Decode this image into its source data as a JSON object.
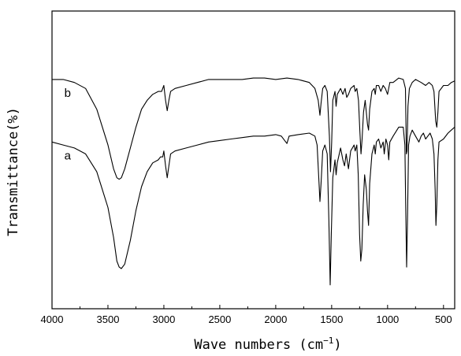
{
  "chart_data": {
    "type": "line",
    "title": "",
    "xlabel": "Wave numbers",
    "xlabel_unit": "(cm",
    "xlabel_sup": "−1",
    "xlabel_close": ")",
    "ylabel": "Transmittance(%)",
    "xlim": [
      4000,
      400
    ],
    "x_reversed": true,
    "ylim": [
      0,
      100
    ],
    "y_ticks_shown": false,
    "grid": false,
    "x_ticks": [
      "4000",
      "3500",
      "3000",
      "2500",
      "2000",
      "1500",
      "1000",
      "500"
    ],
    "series": [
      {
        "name": "b",
        "points": [
          [
            4000,
            77
          ],
          [
            3900,
            77
          ],
          [
            3800,
            76
          ],
          [
            3700,
            74
          ],
          [
            3600,
            67
          ],
          [
            3500,
            55
          ],
          [
            3450,
            47
          ],
          [
            3420,
            44
          ],
          [
            3400,
            43.5
          ],
          [
            3380,
            44
          ],
          [
            3350,
            47
          ],
          [
            3300,
            54
          ],
          [
            3250,
            61
          ],
          [
            3200,
            67
          ],
          [
            3150,
            70
          ],
          [
            3100,
            72
          ],
          [
            3050,
            73
          ],
          [
            3020,
            73
          ],
          [
            3000,
            75
          ],
          [
            2985,
            70
          ],
          [
            2970,
            66.5
          ],
          [
            2955,
            70
          ],
          [
            2940,
            73
          ],
          [
            2900,
            74
          ],
          [
            2800,
            75
          ],
          [
            2700,
            76
          ],
          [
            2600,
            77
          ],
          [
            2500,
            77
          ],
          [
            2400,
            77
          ],
          [
            2300,
            77
          ],
          [
            2200,
            77.5
          ],
          [
            2100,
            77.5
          ],
          [
            2000,
            77
          ],
          [
            1900,
            77.5
          ],
          [
            1800,
            77
          ],
          [
            1700,
            76
          ],
          [
            1650,
            74
          ],
          [
            1620,
            70
          ],
          [
            1605,
            65
          ],
          [
            1595,
            69
          ],
          [
            1580,
            74
          ],
          [
            1560,
            75
          ],
          [
            1540,
            73
          ],
          [
            1520,
            58
          ],
          [
            1510,
            46
          ],
          [
            1500,
            56
          ],
          [
            1490,
            70
          ],
          [
            1470,
            73
          ],
          [
            1460,
            68
          ],
          [
            1450,
            72
          ],
          [
            1420,
            74
          ],
          [
            1400,
            72
          ],
          [
            1380,
            74
          ],
          [
            1365,
            71
          ],
          [
            1350,
            72
          ],
          [
            1330,
            74
          ],
          [
            1300,
            75
          ],
          [
            1290,
            73
          ],
          [
            1275,
            74
          ],
          [
            1260,
            70
          ],
          [
            1248,
            60
          ],
          [
            1238,
            52
          ],
          [
            1228,
            57
          ],
          [
            1215,
            66
          ],
          [
            1200,
            70
          ],
          [
            1180,
            62
          ],
          [
            1170,
            60
          ],
          [
            1160,
            67
          ],
          [
            1140,
            73
          ],
          [
            1120,
            74
          ],
          [
            1110,
            72
          ],
          [
            1100,
            75
          ],
          [
            1080,
            75
          ],
          [
            1060,
            73
          ],
          [
            1040,
            75
          ],
          [
            1020,
            74
          ],
          [
            1000,
            72
          ],
          [
            980,
            76
          ],
          [
            950,
            76
          ],
          [
            900,
            77.5
          ],
          [
            860,
            77
          ],
          [
            840,
            74
          ],
          [
            832,
            52
          ],
          [
            826,
            53
          ],
          [
            818,
            68
          ],
          [
            805,
            74
          ],
          [
            780,
            76
          ],
          [
            750,
            77
          ],
          [
            700,
            76
          ],
          [
            660,
            75
          ],
          [
            630,
            76
          ],
          [
            600,
            75
          ],
          [
            585,
            73
          ],
          [
            570,
            63
          ],
          [
            560,
            61
          ],
          [
            550,
            66
          ],
          [
            540,
            73
          ],
          [
            500,
            75
          ],
          [
            460,
            75
          ],
          [
            430,
            76
          ],
          [
            400,
            76.5
          ]
        ]
      },
      {
        "name": "a",
        "points": [
          [
            4000,
            56
          ],
          [
            3900,
            55
          ],
          [
            3800,
            54
          ],
          [
            3700,
            52
          ],
          [
            3600,
            46
          ],
          [
            3500,
            34
          ],
          [
            3450,
            24
          ],
          [
            3420,
            16
          ],
          [
            3400,
            14
          ],
          [
            3380,
            13.5
          ],
          [
            3350,
            15
          ],
          [
            3300,
            23
          ],
          [
            3250,
            33
          ],
          [
            3200,
            41
          ],
          [
            3150,
            46
          ],
          [
            3100,
            49
          ],
          [
            3050,
            50
          ],
          [
            3030,
            51
          ],
          [
            3010,
            51
          ],
          [
            3000,
            53
          ],
          [
            2985,
            48
          ],
          [
            2970,
            44
          ],
          [
            2955,
            48
          ],
          [
            2940,
            52
          ],
          [
            2900,
            53
          ],
          [
            2800,
            54
          ],
          [
            2700,
            55
          ],
          [
            2600,
            56
          ],
          [
            2500,
            56.5
          ],
          [
            2400,
            57
          ],
          [
            2300,
            57.5
          ],
          [
            2200,
            58
          ],
          [
            2100,
            58
          ],
          [
            2000,
            58.5
          ],
          [
            1950,
            58
          ],
          [
            1900,
            55.5
          ],
          [
            1880,
            58
          ],
          [
            1800,
            58.5
          ],
          [
            1700,
            59
          ],
          [
            1650,
            58
          ],
          [
            1630,
            55
          ],
          [
            1615,
            44
          ],
          [
            1605,
            36
          ],
          [
            1595,
            42
          ],
          [
            1580,
            53
          ],
          [
            1560,
            55
          ],
          [
            1540,
            52
          ],
          [
            1525,
            30
          ],
          [
            1513,
            8
          ],
          [
            1503,
            25
          ],
          [
            1490,
            44
          ],
          [
            1470,
            50
          ],
          [
            1460,
            45
          ],
          [
            1450,
            49
          ],
          [
            1420,
            54
          ],
          [
            1400,
            50
          ],
          [
            1385,
            48
          ],
          [
            1370,
            52
          ],
          [
            1350,
            47
          ],
          [
            1330,
            53
          ],
          [
            1300,
            55
          ],
          [
            1290,
            53
          ],
          [
            1275,
            55
          ],
          [
            1262,
            45
          ],
          [
            1250,
            25
          ],
          [
            1240,
            16
          ],
          [
            1230,
            20
          ],
          [
            1218,
            35
          ],
          [
            1205,
            45
          ],
          [
            1190,
            40
          ],
          [
            1180,
            33
          ],
          [
            1170,
            28
          ],
          [
            1160,
            42
          ],
          [
            1140,
            52
          ],
          [
            1120,
            55
          ],
          [
            1110,
            52
          ],
          [
            1100,
            56
          ],
          [
            1080,
            57
          ],
          [
            1060,
            54
          ],
          [
            1040,
            56
          ],
          [
            1030,
            52
          ],
          [
            1015,
            57
          ],
          [
            1000,
            55
          ],
          [
            990,
            50
          ],
          [
            980,
            56
          ],
          [
            950,
            58
          ],
          [
            900,
            61
          ],
          [
            860,
            61
          ],
          [
            845,
            55
          ],
          [
            838,
            35
          ],
          [
            830,
            14
          ],
          [
            822,
            30
          ],
          [
            812,
            55
          ],
          [
            800,
            58
          ],
          [
            780,
            60
          ],
          [
            750,
            58
          ],
          [
            720,
            56
          ],
          [
            700,
            58
          ],
          [
            680,
            59
          ],
          [
            660,
            57
          ],
          [
            640,
            58
          ],
          [
            620,
            59
          ],
          [
            600,
            57
          ],
          [
            585,
            52
          ],
          [
            575,
            40
          ],
          [
            568,
            28
          ],
          [
            560,
            35
          ],
          [
            550,
            50
          ],
          [
            540,
            56
          ],
          [
            500,
            57
          ],
          [
            460,
            59
          ],
          [
            430,
            60
          ],
          [
            400,
            61
          ]
        ]
      }
    ]
  }
}
